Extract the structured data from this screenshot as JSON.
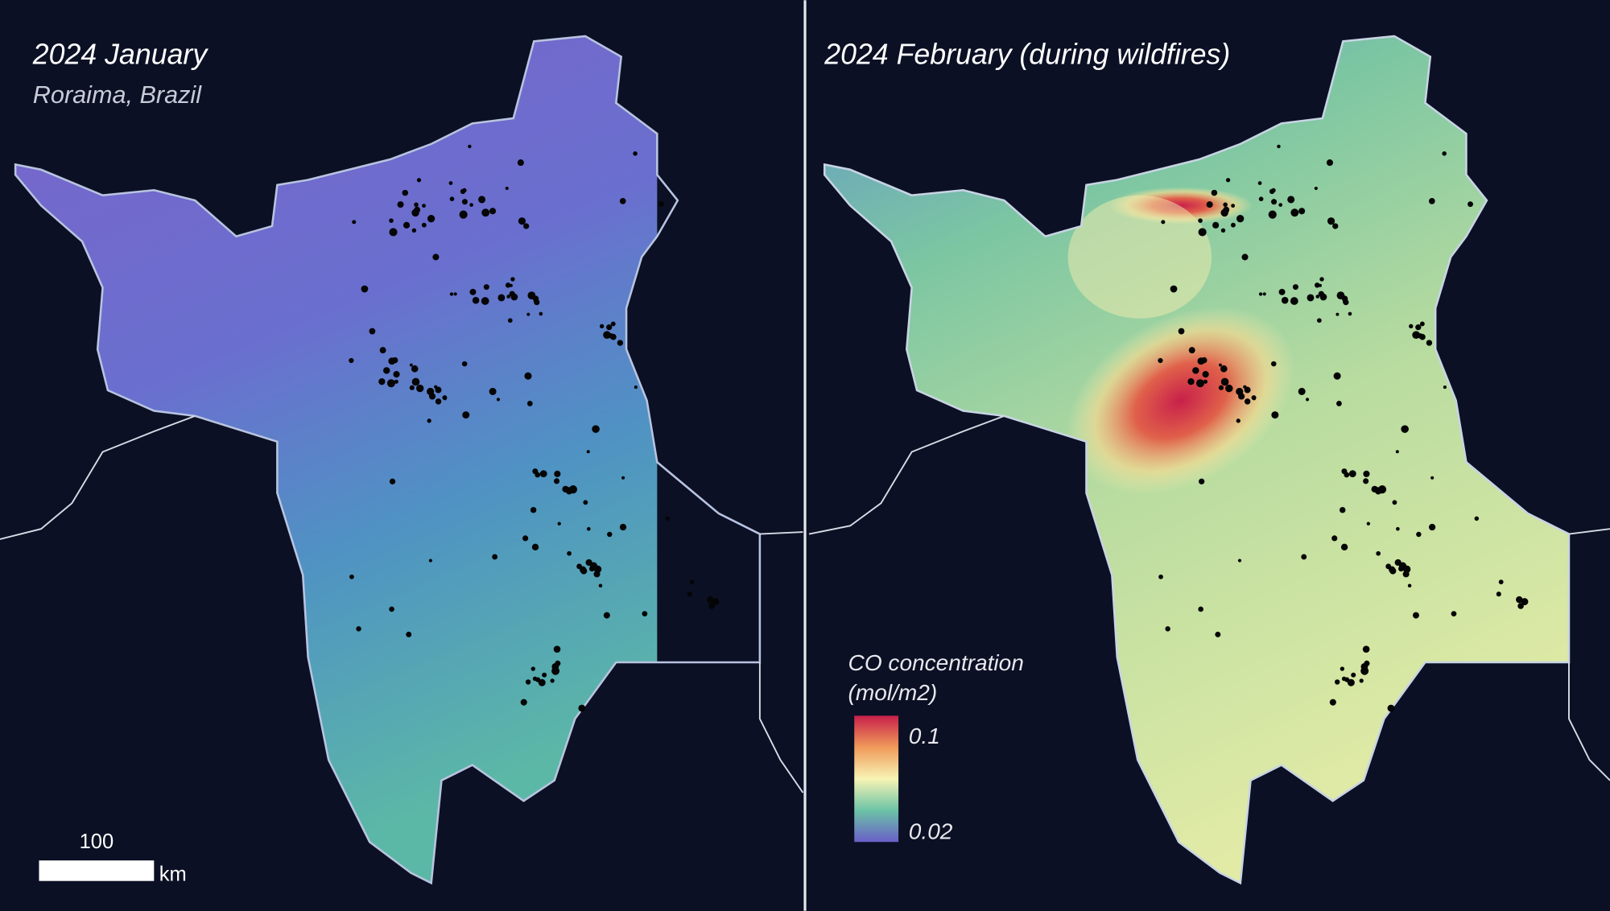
{
  "panels": [
    {
      "title": "2024 January",
      "subtitle": "Roraima, Brazil"
    },
    {
      "title": "2024 February (during wildfires)"
    }
  ],
  "legend": {
    "title": "CO concentration",
    "unit": "(mol/m2)",
    "max_label": "0.1",
    "min_label": "0.02"
  },
  "scale_bar": {
    "distance": "100",
    "unit": "km"
  }
}
